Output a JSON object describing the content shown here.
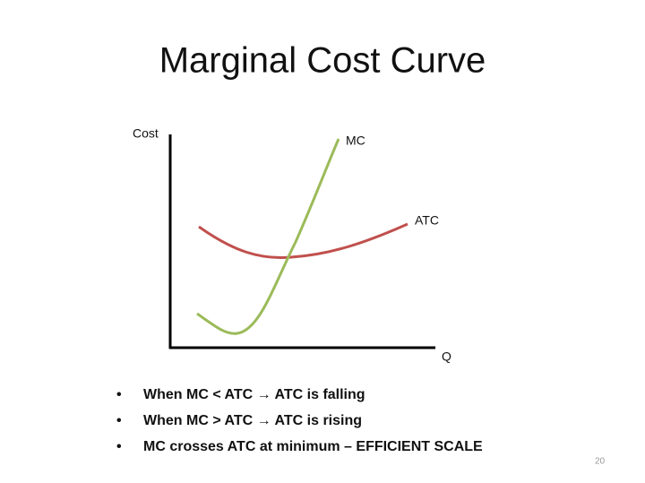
{
  "title": "Marginal Cost Curve",
  "diagram": {
    "y_axis_label": "Cost",
    "x_axis_label": "Q",
    "curves": [
      {
        "label": "MC"
      },
      {
        "label": "ATC"
      }
    ]
  },
  "bullets": [
    "When MC < ATC → ATC is falling",
    "When MC > ATC → ATC is rising",
    "MC crosses ATC at minimum – EFFICIENT SCALE"
  ],
  "page_number": "20"
}
